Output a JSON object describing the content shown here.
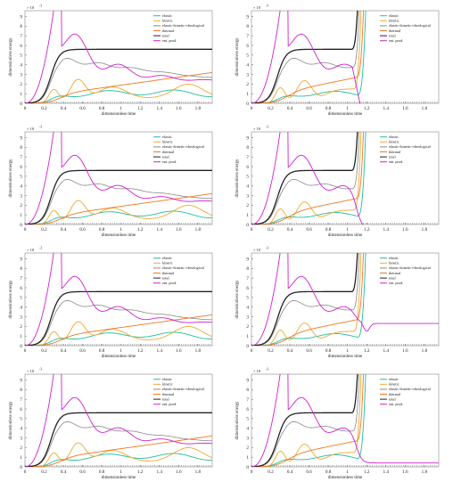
{
  "panels": [
    {
      "id": "r1c1",
      "left_col": true
    },
    {
      "id": "r1c2",
      "left_col": false
    },
    {
      "id": "r2c1",
      "left_col": true
    },
    {
      "id": "r2c2",
      "left_col": false
    },
    {
      "id": "r3c1",
      "left_col": true
    },
    {
      "id": "r3c2",
      "left_col": false
    },
    {
      "id": "r4c1",
      "left_col": true
    },
    {
      "id": "r4c2",
      "left_col": false
    }
  ],
  "chart_data": [
    {
      "type": "line",
      "title": "",
      "xlabel": "dimensionless time",
      "ylabel": "dimensionless energy",
      "exponent_label": "× 10",
      "exponent": "-3",
      "xlim": [
        0,
        1.95
      ],
      "ylim": [
        0,
        9.6
      ],
      "xticks": [
        "0",
        "0.2",
        "0.4",
        "0.6",
        "0.8",
        "1",
        "1.2",
        "1.4",
        "1.6",
        "1.8"
      ],
      "yticks": [
        "0",
        "1",
        "2",
        "3",
        "4",
        "5",
        "6",
        "7",
        "8",
        "9"
      ],
      "legend": [
        "elastic",
        "kinetic",
        "elastic+kinetic+rheological",
        "thermal",
        "total",
        "ent. prod."
      ],
      "colors": {
        "elastic": "#1fbf9f",
        "kinetic": "#f0a830",
        "erh": "#8a8a8a",
        "thermal": "#f07820",
        "total": "#222222",
        "entprod": "#d020d0",
        "dotted": "#444444"
      }
    }
  ]
}
